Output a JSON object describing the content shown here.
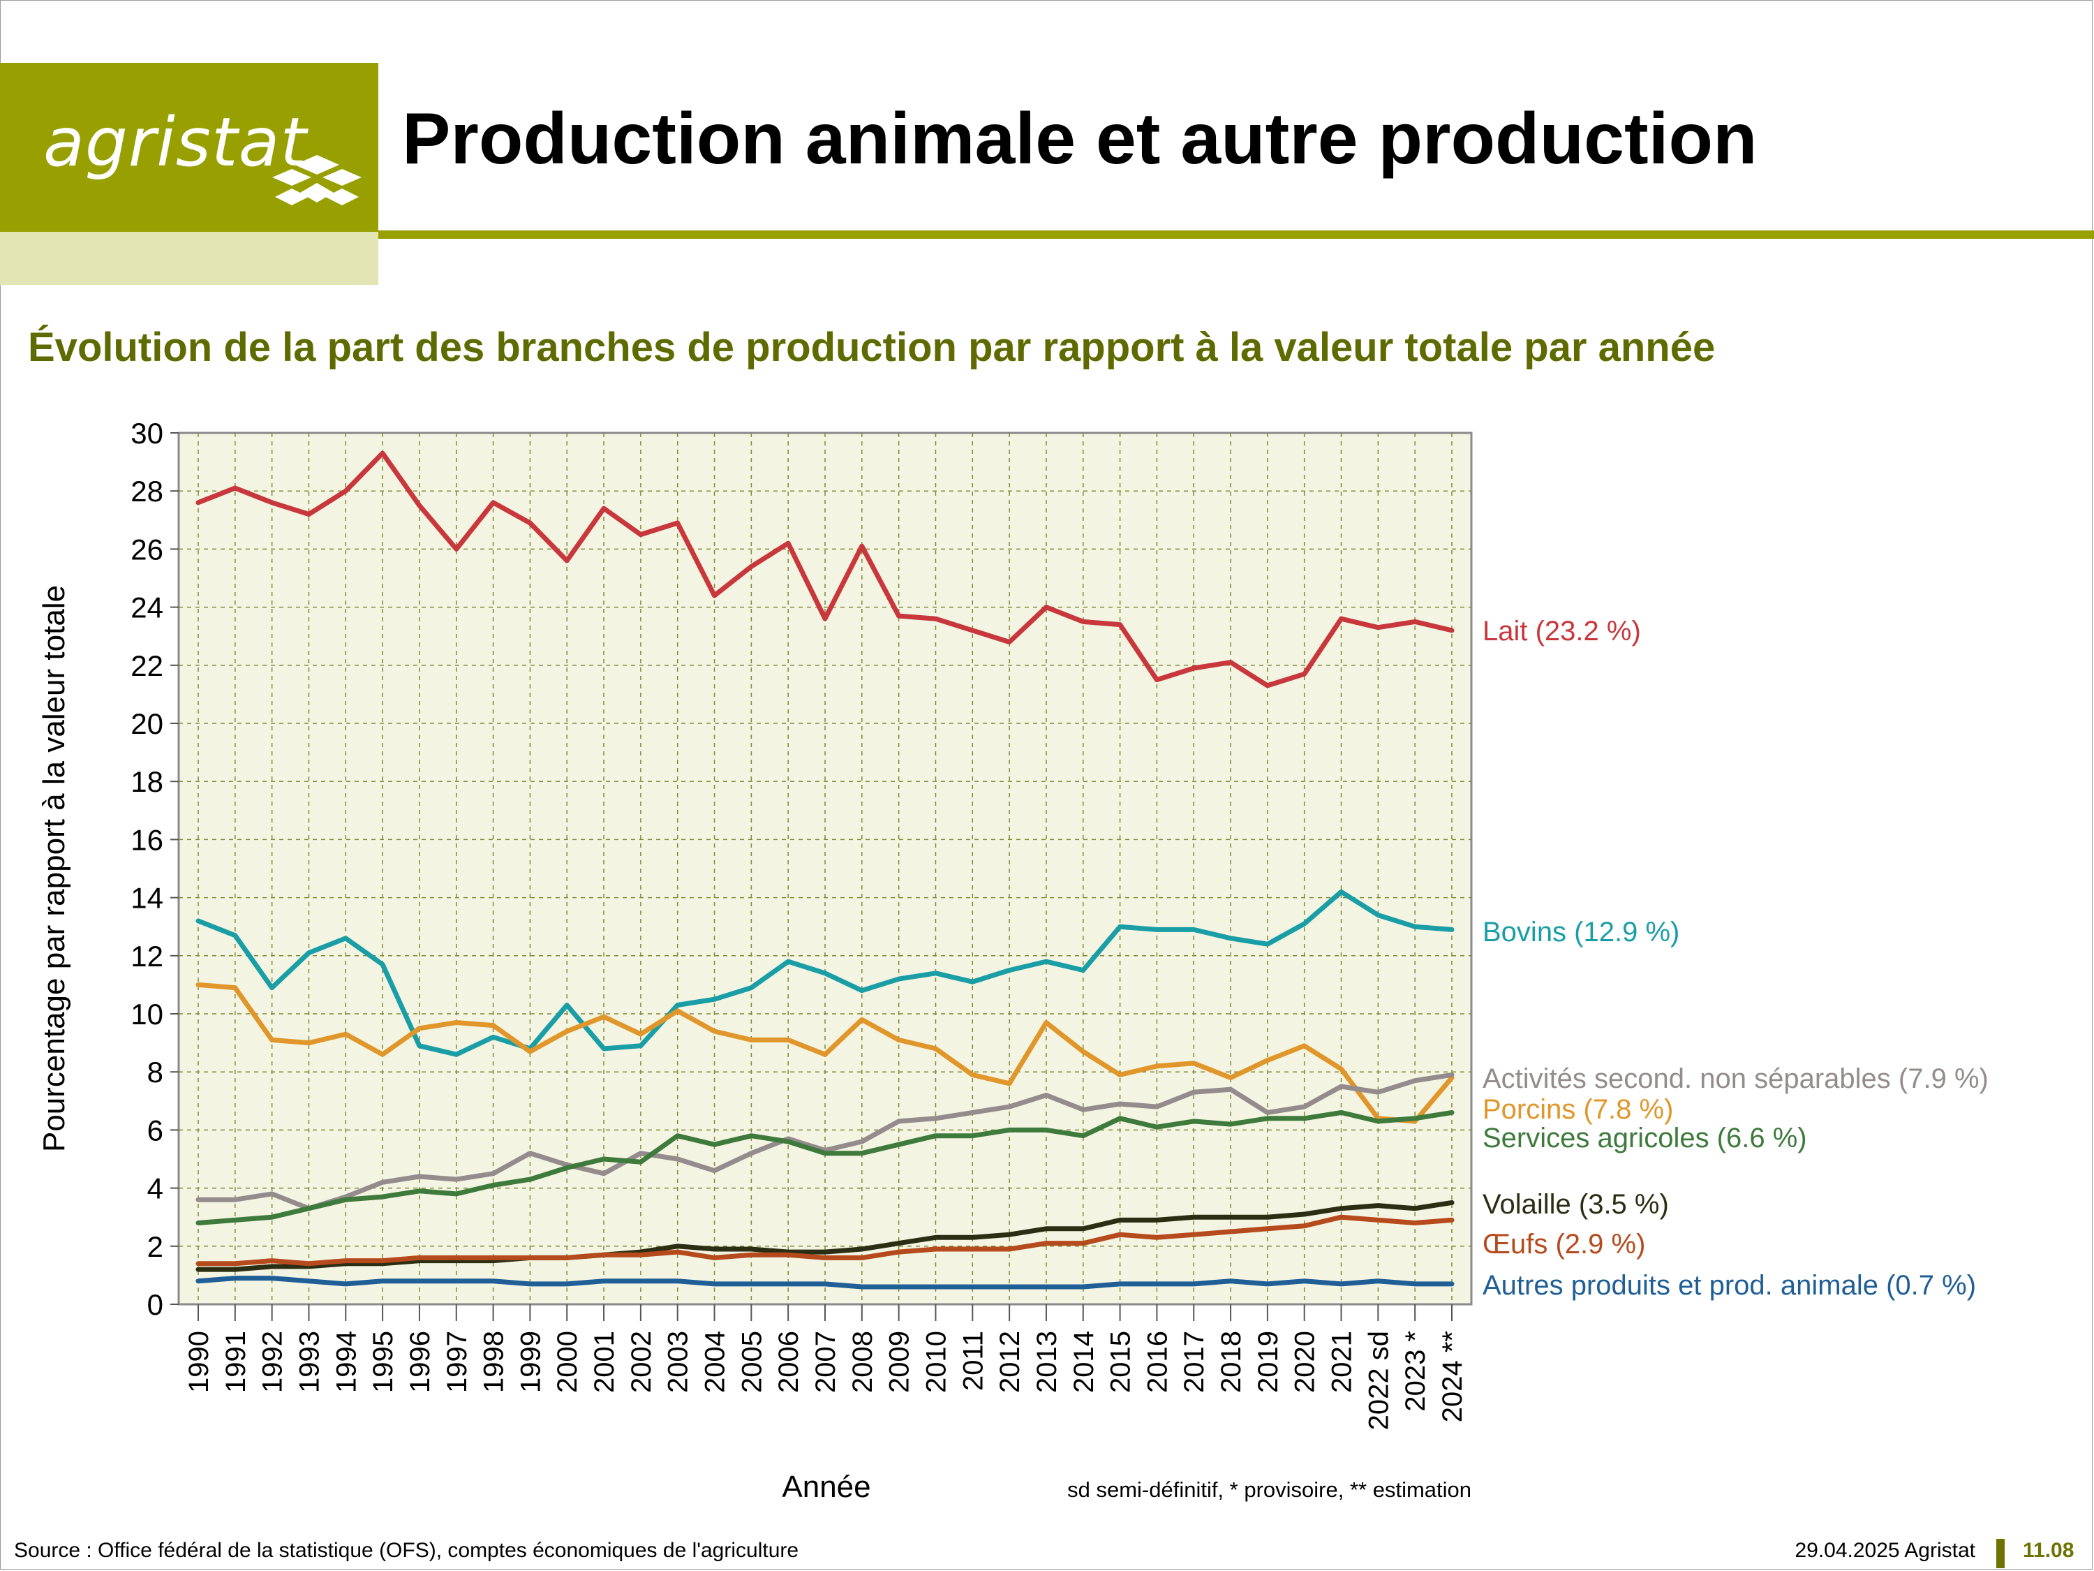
{
  "header": {
    "logo_text": "agristat",
    "title": "Production animale et autre production"
  },
  "subtitle": "Évolution de la part des branches de production par rapport à la valeur totale par année",
  "colors": {
    "brand": "#97a000",
    "brand_pale": "#e3e6b4",
    "subtitle": "#5f6a00",
    "plot_bg": "#f4f4e2",
    "grid": "#7f8a36"
  },
  "footer": {
    "source": "Source : Office fédéral de la statistique (OFS), comptes économiques de l'agriculture",
    "date": "29.04.2025 Agristat",
    "page": "11.08"
  },
  "chart_data": {
    "type": "line",
    "xlabel": "Année",
    "ylabel": "Pourcentage par rapport à la valeur totale",
    "ylim": [
      0,
      30
    ],
    "y_ticks": [
      "0",
      "2",
      "4",
      "6",
      "8",
      "10",
      "12",
      "14",
      "16",
      "18",
      "20",
      "22",
      "24",
      "26",
      "28",
      "30"
    ],
    "grid": true,
    "footnote": "sd semi-définitif, * provisoire, ** estimation",
    "categories": [
      "1990",
      "1991",
      "1992",
      "1993",
      "1994",
      "1995",
      "1996",
      "1997",
      "1998",
      "1999",
      "2000",
      "2001",
      "2002",
      "2003",
      "2004",
      "2005",
      "2006",
      "2007",
      "2008",
      "2009",
      "2010",
      "2011",
      "2012",
      "2013",
      "2014",
      "2015",
      "2016",
      "2017",
      "2018",
      "2019",
      "2020",
      "2021",
      "2022 sd",
      "2023 *",
      "2024 **"
    ],
    "series": [
      {
        "name": "Lait (23.2 %)",
        "color": "#c8373c",
        "values": [
          27.6,
          28.1,
          27.6,
          27.2,
          28.0,
          29.3,
          27.5,
          26.0,
          27.6,
          26.9,
          25.6,
          27.4,
          26.5,
          26.9,
          24.4,
          25.4,
          26.2,
          23.6,
          26.1,
          23.7,
          23.6,
          23.2,
          22.8,
          24.0,
          23.5,
          23.4,
          21.5,
          21.9,
          22.1,
          21.3,
          21.7,
          23.6,
          23.3,
          23.5,
          23.2
        ]
      },
      {
        "name": "Bovins (12.9 %)",
        "color": "#1a9ea6",
        "values": [
          13.2,
          12.7,
          10.9,
          12.1,
          12.6,
          11.7,
          8.9,
          8.6,
          9.2,
          8.8,
          10.3,
          8.8,
          8.9,
          10.3,
          10.5,
          10.9,
          11.8,
          11.4,
          10.8,
          11.2,
          11.4,
          11.1,
          11.5,
          11.8,
          11.5,
          13.0,
          12.9,
          12.9,
          12.6,
          12.4,
          13.1,
          14.2,
          13.4,
          13.0,
          12.9
        ]
      },
      {
        "name": "Porcins (7.8 %)",
        "color": "#e0962a",
        "values": [
          11.0,
          10.9,
          9.1,
          9.0,
          9.3,
          8.6,
          9.5,
          9.7,
          9.6,
          8.7,
          9.4,
          9.9,
          9.3,
          10.1,
          9.4,
          9.1,
          9.1,
          8.6,
          9.8,
          9.1,
          8.8,
          7.9,
          7.6,
          9.7,
          8.7,
          7.9,
          8.2,
          8.3,
          7.8,
          8.4,
          8.9,
          8.1,
          6.4,
          6.3,
          7.8
        ]
      },
      {
        "name": "Activités second. non séparables (7.9 %)",
        "color": "#948c8c",
        "values": [
          3.6,
          3.6,
          3.8,
          3.3,
          3.7,
          4.2,
          4.4,
          4.3,
          4.5,
          5.2,
          4.8,
          4.5,
          5.2,
          5.0,
          4.6,
          5.2,
          5.7,
          5.3,
          5.6,
          6.3,
          6.4,
          6.6,
          6.8,
          7.2,
          6.7,
          6.9,
          6.8,
          7.3,
          7.4,
          6.6,
          6.8,
          7.5,
          7.3,
          7.7,
          7.9
        ]
      },
      {
        "name": "Services agricoles (6.6 %)",
        "color": "#3d7a3b",
        "values": [
          2.8,
          2.9,
          3.0,
          3.3,
          3.6,
          3.7,
          3.9,
          3.8,
          4.1,
          4.3,
          4.7,
          5.0,
          4.9,
          5.8,
          5.5,
          5.8,
          5.6,
          5.2,
          5.2,
          5.5,
          5.8,
          5.8,
          6.0,
          6.0,
          5.8,
          6.4,
          6.1,
          6.3,
          6.2,
          6.4,
          6.4,
          6.6,
          6.3,
          6.4,
          6.6
        ]
      },
      {
        "name": "Volaille (3.5 %)",
        "color": "#2c2e14",
        "values": [
          1.2,
          1.2,
          1.3,
          1.3,
          1.4,
          1.4,
          1.5,
          1.5,
          1.5,
          1.6,
          1.6,
          1.7,
          1.8,
          2.0,
          1.9,
          1.9,
          1.8,
          1.8,
          1.9,
          2.1,
          2.3,
          2.3,
          2.4,
          2.6,
          2.6,
          2.9,
          2.9,
          3.0,
          3.0,
          3.0,
          3.1,
          3.3,
          3.4,
          3.3,
          3.5
        ]
      },
      {
        "name": "Œufs (2.9 %)",
        "color": "#b54a1c",
        "values": [
          1.4,
          1.4,
          1.5,
          1.4,
          1.5,
          1.5,
          1.6,
          1.6,
          1.6,
          1.6,
          1.6,
          1.7,
          1.7,
          1.8,
          1.6,
          1.7,
          1.7,
          1.6,
          1.6,
          1.8,
          1.9,
          1.9,
          1.9,
          2.1,
          2.1,
          2.4,
          2.3,
          2.4,
          2.5,
          2.6,
          2.7,
          3.0,
          2.9,
          2.8,
          2.9
        ]
      },
      {
        "name": "Autres produits et prod. animale (0.7 %)",
        "color": "#1f5f96",
        "values": [
          0.8,
          0.9,
          0.9,
          0.8,
          0.7,
          0.8,
          0.8,
          0.8,
          0.8,
          0.7,
          0.7,
          0.8,
          0.8,
          0.8,
          0.7,
          0.7,
          0.7,
          0.7,
          0.6,
          0.6,
          0.6,
          0.6,
          0.6,
          0.6,
          0.6,
          0.7,
          0.7,
          0.7,
          0.8,
          0.7,
          0.8,
          0.7,
          0.8,
          0.7,
          0.7
        ]
      }
    ]
  }
}
